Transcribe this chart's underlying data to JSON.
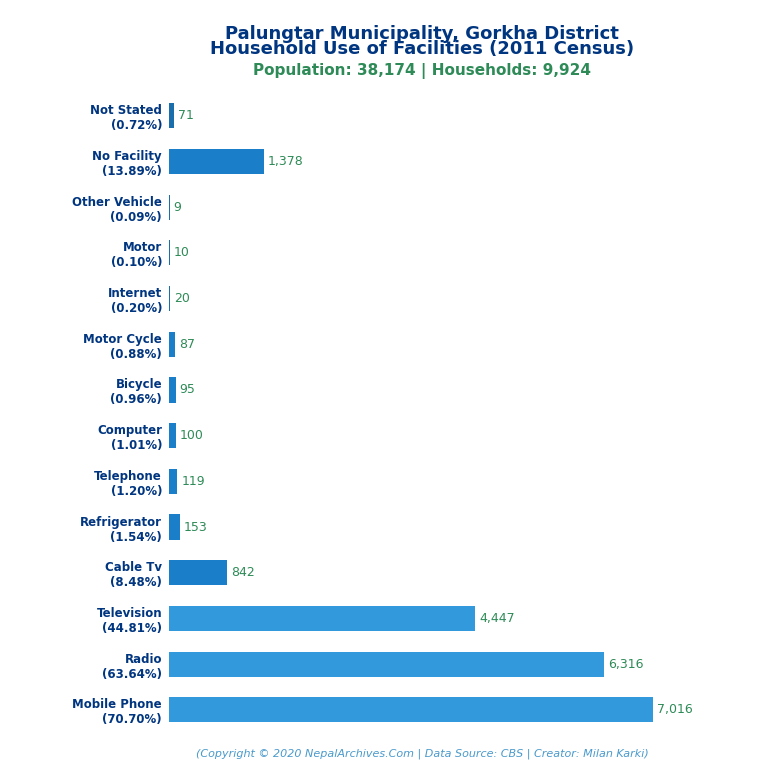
{
  "title_line1": "Palungtar Municipality, Gorkha District",
  "title_line2": "Household Use of Facilities (2011 Census)",
  "subtitle": "Population: 38,174 | Households: 9,924",
  "footer": "(Copyright © 2020 NepalArchives.Com | Data Source: CBS | Creator: Milan Karki)",
  "categories": [
    "Not Stated\n(0.72%)",
    "No Facility\n(13.89%)",
    "Other Vehicle\n(0.09%)",
    "Motor\n(0.10%)",
    "Internet\n(0.20%)",
    "Motor Cycle\n(0.88%)",
    "Bicycle\n(0.96%)",
    "Computer\n(1.01%)",
    "Telephone\n(1.20%)",
    "Refrigerator\n(1.54%)",
    "Cable Tv\n(8.48%)",
    "Television\n(44.81%)",
    "Radio\n(63.64%)",
    "Mobile Phone\n(70.70%)"
  ],
  "values": [
    71,
    1378,
    9,
    10,
    20,
    87,
    95,
    100,
    119,
    153,
    842,
    4447,
    6316,
    7016
  ],
  "bar_colors": [
    "#1a6eab",
    "#1a7fc8",
    "#1a6eab",
    "#1a6eab",
    "#1a6eab",
    "#1a7fc8",
    "#1a7fc8",
    "#1a7fc8",
    "#1a7fc8",
    "#1a7fc8",
    "#1a7fc8",
    "#3399dd",
    "#3399dd",
    "#3399dd"
  ],
  "value_labels": [
    "71",
    "1,378",
    "9",
    "10",
    "20",
    "87",
    "95",
    "100",
    "119",
    "153",
    "842",
    "4,447",
    "6,316",
    "7,016"
  ],
  "title_color": "#003580",
  "subtitle_color": "#2e8b57",
  "value_color": "#2e8b57",
  "footer_color": "#4a9acc",
  "bg_color": "#ffffff",
  "xlim": [
    0,
    7800
  ]
}
